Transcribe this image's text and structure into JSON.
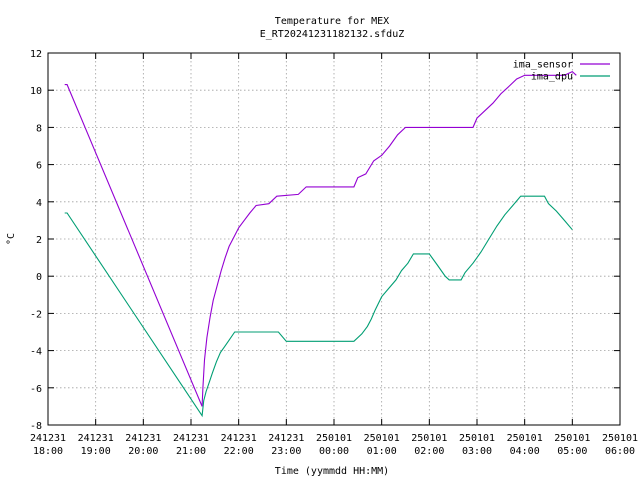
{
  "chart_data": {
    "type": "line",
    "title": "Temperature for MEX",
    "subtitle": "E_RT20241231182132.sfduZ",
    "xlabel": "Time (yymmdd HH:MM)",
    "ylabel": "°C",
    "xlim": [
      "2024-12-31 18:00",
      "2025-01-01 06:00"
    ],
    "ylim": [
      -8,
      12
    ],
    "grid": true,
    "legend_position": "top-right",
    "x_ticks": [
      {
        "time": "2024-12-31 18:00",
        "date": "241231",
        "clock": "18:00"
      },
      {
        "time": "2024-12-31 19:00",
        "date": "241231",
        "clock": "19:00"
      },
      {
        "time": "2024-12-31 20:00",
        "date": "241231",
        "clock": "20:00"
      },
      {
        "time": "2024-12-31 21:00",
        "date": "241231",
        "clock": "21:00"
      },
      {
        "time": "2024-12-31 22:00",
        "date": "241231",
        "clock": "22:00"
      },
      {
        "time": "2024-12-31 23:00",
        "date": "241231",
        "clock": "23:00"
      },
      {
        "time": "2025-01-01 00:00",
        "date": "250101",
        "clock": "00:00"
      },
      {
        "time": "2025-01-01 01:00",
        "date": "250101",
        "clock": "01:00"
      },
      {
        "time": "2025-01-01 02:00",
        "date": "250101",
        "clock": "02:00"
      },
      {
        "time": "2025-01-01 03:00",
        "date": "250101",
        "clock": "03:00"
      },
      {
        "time": "2025-01-01 04:00",
        "date": "250101",
        "clock": "04:00"
      },
      {
        "time": "2025-01-01 05:00",
        "date": "250101",
        "clock": "05:00"
      },
      {
        "time": "2025-01-01 06:00",
        "date": "250101",
        "clock": "06:00"
      }
    ],
    "y_ticks": [
      -8,
      -6,
      -4,
      -2,
      0,
      2,
      4,
      6,
      8,
      10,
      12
    ],
    "series": [
      {
        "name": "ima_sensor",
        "color": "#9400d3",
        "points": [
          [
            "2024-12-31 18:21",
            10.3
          ],
          [
            "2024-12-31 18:24",
            10.3
          ],
          [
            "2024-12-31 21:14",
            -7.0
          ],
          [
            "2024-12-31 21:15",
            -6.0
          ],
          [
            "2024-12-31 21:17",
            -4.5
          ],
          [
            "2024-12-31 21:20",
            -3.3
          ],
          [
            "2024-12-31 21:24",
            -2.2
          ],
          [
            "2024-12-31 21:28",
            -1.3
          ],
          [
            "2024-12-31 21:33",
            -0.5
          ],
          [
            "2024-12-31 21:38",
            0.3
          ],
          [
            "2024-12-31 21:43",
            1.0
          ],
          [
            "2024-12-31 21:48",
            1.6
          ],
          [
            "2024-12-31 21:54",
            2.1
          ],
          [
            "2024-12-31 22:00",
            2.6
          ],
          [
            "2024-12-31 22:07",
            3.0
          ],
          [
            "2024-12-31 22:14",
            3.4
          ],
          [
            "2024-12-31 22:22",
            3.8
          ],
          [
            "2024-12-31 22:38",
            3.9
          ],
          [
            "2024-12-31 22:48",
            4.3
          ],
          [
            "2024-12-31 23:15",
            4.4
          ],
          [
            "2024-12-31 23:25",
            4.8
          ],
          [
            "2025-01-01 00:25",
            4.8
          ],
          [
            "2025-01-01 00:30",
            5.3
          ],
          [
            "2025-01-01 00:40",
            5.5
          ],
          [
            "2025-01-01 00:50",
            6.2
          ],
          [
            "2025-01-01 01:00",
            6.5
          ],
          [
            "2025-01-01 01:10",
            7.0
          ],
          [
            "2025-01-01 01:20",
            7.6
          ],
          [
            "2025-01-01 01:30",
            8.0
          ],
          [
            "2025-01-01 02:55",
            8.0
          ],
          [
            "2025-01-01 03:00",
            8.5
          ],
          [
            "2025-01-01 03:10",
            8.9
          ],
          [
            "2025-01-01 03:20",
            9.3
          ],
          [
            "2025-01-01 03:30",
            9.8
          ],
          [
            "2025-01-01 03:40",
            10.2
          ],
          [
            "2025-01-01 03:50",
            10.6
          ],
          [
            "2025-01-01 04:00",
            10.8
          ],
          [
            "2025-01-01 04:50",
            10.8
          ],
          [
            "2025-01-01 05:00",
            11.0
          ],
          [
            "2025-01-01 05:05",
            10.8
          ]
        ]
      },
      {
        "name": "ima_dpu",
        "color": "#009e73",
        "points": [
          [
            "2024-12-31 18:21",
            3.4
          ],
          [
            "2024-12-31 18:24",
            3.4
          ],
          [
            "2024-12-31 21:14",
            -7.5
          ],
          [
            "2024-12-31 21:16",
            -6.7
          ],
          [
            "2024-12-31 21:19",
            -6.2
          ],
          [
            "2024-12-31 21:23",
            -5.7
          ],
          [
            "2024-12-31 21:27",
            -5.2
          ],
          [
            "2024-12-31 21:32",
            -4.6
          ],
          [
            "2024-12-31 21:37",
            -4.1
          ],
          [
            "2024-12-31 21:42",
            -3.8
          ],
          [
            "2024-12-31 21:47",
            -3.5
          ],
          [
            "2024-12-31 21:55",
            -3.0
          ],
          [
            "2024-12-31 22:50",
            -3.0
          ],
          [
            "2024-12-31 23:00",
            -3.5
          ],
          [
            "2025-01-01 00:15",
            -3.5
          ],
          [
            "2025-01-01 00:25",
            -3.5
          ],
          [
            "2025-01-01 00:35",
            -3.1
          ],
          [
            "2025-01-01 00:42",
            -2.7
          ],
          [
            "2025-01-01 00:47",
            -2.3
          ],
          [
            "2025-01-01 00:52",
            -1.8
          ],
          [
            "2025-01-01 01:00",
            -1.1
          ],
          [
            "2025-01-01 01:10",
            -0.6
          ],
          [
            "2025-01-01 01:18",
            -0.2
          ],
          [
            "2025-01-01 01:25",
            0.3
          ],
          [
            "2025-01-01 01:33",
            0.7
          ],
          [
            "2025-01-01 01:40",
            1.2
          ],
          [
            "2025-01-01 02:00",
            1.2
          ],
          [
            "2025-01-01 02:10",
            0.6
          ],
          [
            "2025-01-01 02:20",
            0.0
          ],
          [
            "2025-01-01 02:25",
            -0.2
          ],
          [
            "2025-01-01 02:40",
            -0.2
          ],
          [
            "2025-01-01 02:45",
            0.2
          ],
          [
            "2025-01-01 02:55",
            0.7
          ],
          [
            "2025-01-01 03:05",
            1.3
          ],
          [
            "2025-01-01 03:15",
            2.0
          ],
          [
            "2025-01-01 03:25",
            2.7
          ],
          [
            "2025-01-01 03:35",
            3.3
          ],
          [
            "2025-01-01 03:45",
            3.8
          ],
          [
            "2025-01-01 03:55",
            4.3
          ],
          [
            "2025-01-01 04:25",
            4.3
          ],
          [
            "2025-01-01 04:30",
            3.9
          ],
          [
            "2025-01-01 04:40",
            3.5
          ],
          [
            "2025-01-01 04:50",
            3.0
          ],
          [
            "2025-01-01 05:00",
            2.5
          ]
        ]
      }
    ]
  }
}
